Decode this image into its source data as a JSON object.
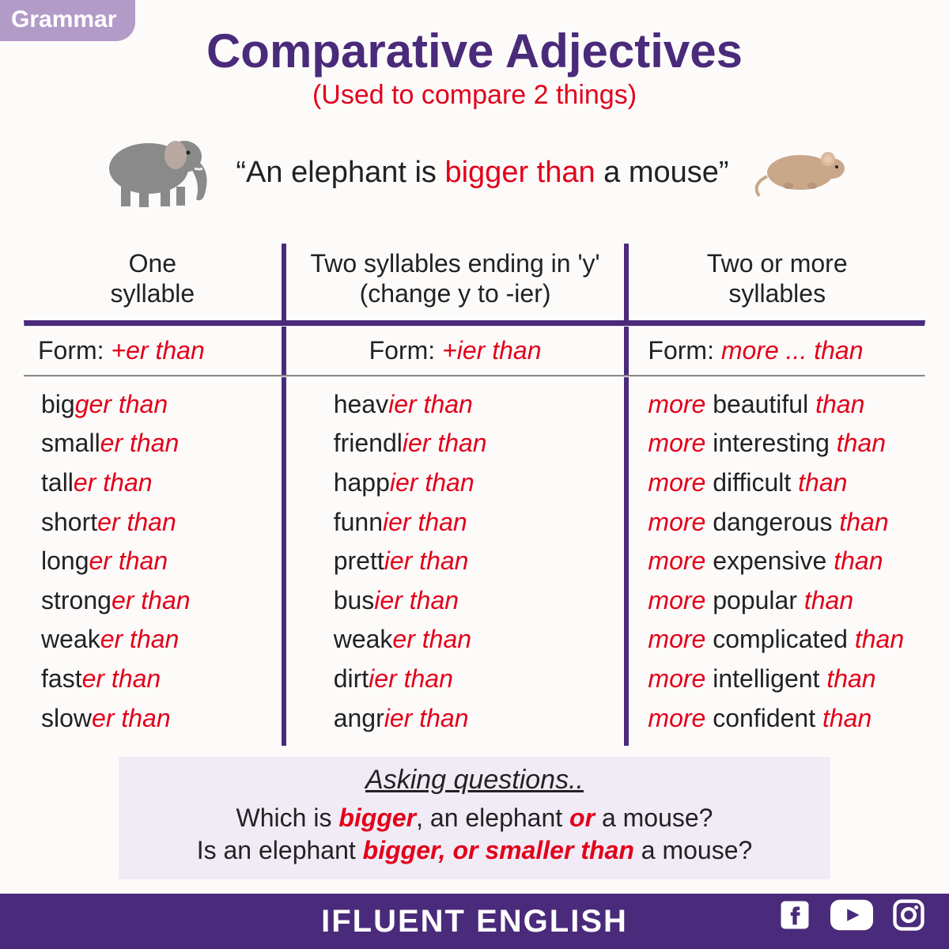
{
  "tag": "Grammar",
  "title": "Comparative Adjectives",
  "subtitle": "(Used to compare 2 things)",
  "example": {
    "pre": "“An elephant is ",
    "highlight": "bigger than",
    "post": " a mouse”"
  },
  "columns": {
    "left": {
      "header_line1": "One",
      "header_line2": "syllable",
      "form_label": "Form:  ",
      "form_value": "+er than"
    },
    "mid": {
      "header_line1": "Two syllables ending in 'y'",
      "header_line2": "(change y to -ier)",
      "form_label": "Form:  ",
      "form_value": "+ier than"
    },
    "right": {
      "header_line1": "Two or more",
      "header_line2": "syllables",
      "form_label": "Form:  ",
      "form_value": "more ... than"
    }
  },
  "left_words": [
    {
      "base": "big",
      "suffix": "ger than"
    },
    {
      "base": "small",
      "suffix": "er than"
    },
    {
      "base": "tall",
      "suffix": "er than"
    },
    {
      "base": "short",
      "suffix": "er than"
    },
    {
      "base": "long",
      "suffix": "er than"
    },
    {
      "base": "strong",
      "suffix": "er than"
    },
    {
      "base": "weak",
      "suffix": "er than"
    },
    {
      "base": "fast",
      "suffix": "er than"
    },
    {
      "base": "slow",
      "suffix": "er than"
    }
  ],
  "mid_words": [
    {
      "base": "heav",
      "suffix": "ier than"
    },
    {
      "base": "friendl",
      "suffix": "ier than"
    },
    {
      "base": "happ",
      "suffix": "ier than"
    },
    {
      "base": "funn",
      "suffix": "ier than"
    },
    {
      "base": "prett",
      "suffix": "ier than"
    },
    {
      "base": "bus",
      "suffix": "ier than"
    },
    {
      "base": "weak",
      "suffix": "er than"
    },
    {
      "base": "dirt",
      "suffix": "ier than"
    },
    {
      "base": "angr",
      "suffix": "ier than"
    }
  ],
  "right_words": [
    {
      "word": "beautiful"
    },
    {
      "word": "interesting"
    },
    {
      "word": "difficult"
    },
    {
      "word": "dangerous"
    },
    {
      "word": "expensive"
    },
    {
      "word": "popular"
    },
    {
      "word": "complicated"
    },
    {
      "word": "intelligent"
    },
    {
      "word": "confident"
    }
  ],
  "more_label": "more",
  "than_label": "than",
  "questions": {
    "heading": "Asking questions..",
    "q1_pre": "Which is ",
    "q1_b": "bigger",
    "q1_mid": ", an elephant ",
    "q1_or": "or",
    "q1_post": " a mouse?",
    "q2_pre": "Is an elephant ",
    "q2_b": "bigger, or smaller than",
    "q2_post": " a mouse?"
  },
  "footer": "IFLUENT ENGLISH",
  "colors": {
    "purple": "#4a2a7a",
    "lilac": "#b39bc8",
    "red": "#e2001a",
    "bg": "#fdfbfa",
    "box": "#f1ebf6"
  }
}
